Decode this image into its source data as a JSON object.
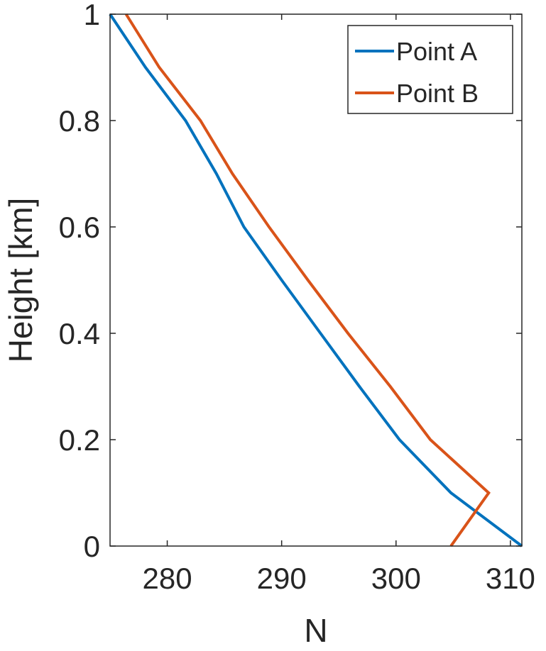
{
  "chart_data": {
    "type": "line",
    "xlabel": "N",
    "ylabel": "Height [km]",
    "xlim": [
      275,
      311
    ],
    "ylim": [
      0,
      1
    ],
    "xticks": [
      280,
      290,
      300,
      310
    ],
    "xtick_labels": [
      "280",
      "290",
      "300",
      "310"
    ],
    "yticks": [
      0,
      0.2,
      0.4,
      0.6,
      0.8,
      1
    ],
    "ytick_labels": [
      "0",
      "0.2",
      "0.4",
      "0.6",
      "0.8",
      "1"
    ],
    "grid": false,
    "legend_position": "top-right",
    "series": [
      {
        "name": "Point A",
        "color": "#0072BD",
        "x": [
          311.0,
          304.8,
          300.3,
          296.8,
          293.4,
          290.0,
          286.7,
          284.3,
          281.6,
          278.1,
          275.0
        ],
        "y": [
          0.0,
          0.1,
          0.2,
          0.3,
          0.4,
          0.5,
          0.6,
          0.7,
          0.8,
          0.9,
          1.0
        ]
      },
      {
        "name": "Point B",
        "color": "#D95319",
        "x": [
          304.8,
          308.1,
          303.0,
          299.5,
          295.8,
          292.3,
          288.9,
          285.7,
          282.9,
          279.3,
          276.4
        ],
        "y": [
          0.0,
          0.1,
          0.2,
          0.3,
          0.4,
          0.5,
          0.6,
          0.7,
          0.8,
          0.9,
          1.0
        ]
      }
    ]
  }
}
